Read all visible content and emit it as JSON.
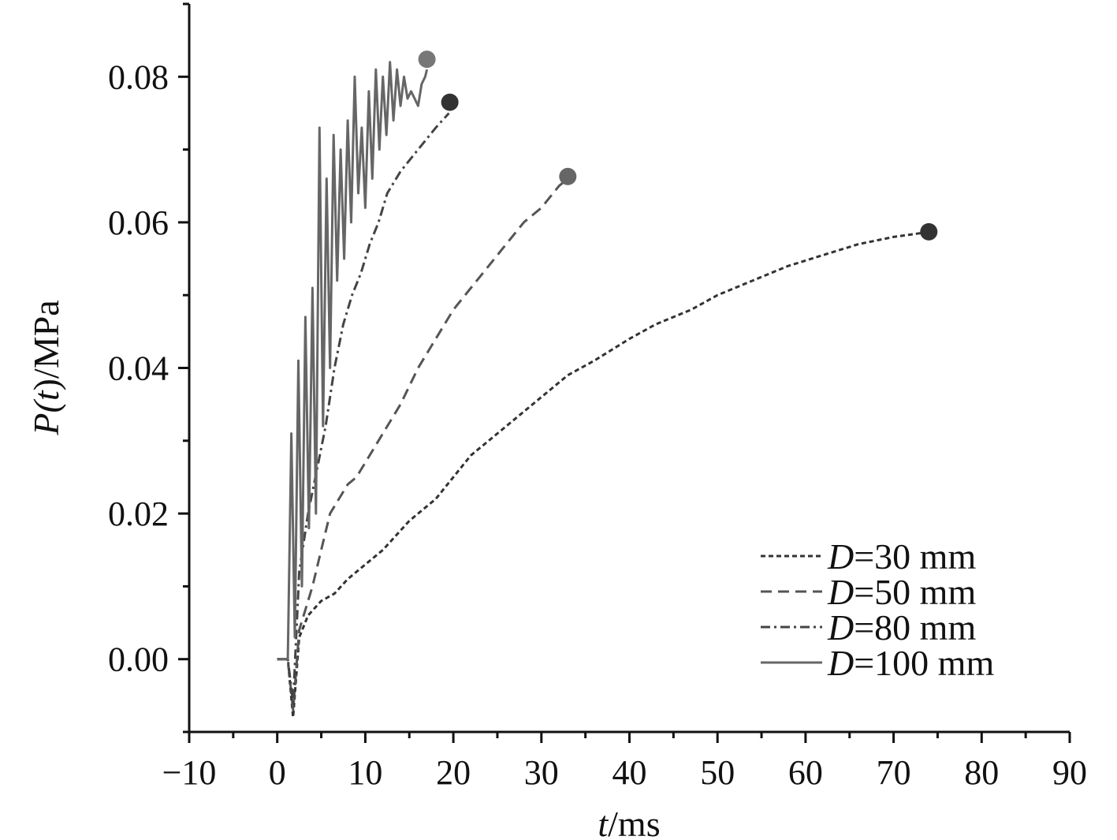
{
  "chart_data": {
    "type": "line",
    "xlabel": {
      "italic": "t",
      "rest": "/ms"
    },
    "ylabel": {
      "italic_prefix": "P(",
      "italic": "t",
      "rest": ")/MPa"
    },
    "xlim": [
      -10,
      90
    ],
    "ylim": [
      -0.01,
      0.09
    ],
    "x_ticks": [
      -10,
      0,
      10,
      20,
      30,
      40,
      50,
      60,
      70,
      80,
      90
    ],
    "x_tick_labels": [
      "−10",
      "0",
      "10",
      "20",
      "30",
      "40",
      "50",
      "60",
      "70",
      "80",
      "90"
    ],
    "y_ticks": [
      0.0,
      0.02,
      0.04,
      0.06,
      0.08
    ],
    "y_tick_labels": [
      "0.00",
      "0.02",
      "0.04",
      "0.06",
      "0.08"
    ],
    "grid": false,
    "legend_position": "bottom-right",
    "series": [
      {
        "name": "D=30 mm",
        "name_italic": "D",
        "name_rest": "=30 mm",
        "dash": "dotted",
        "color": "#333333",
        "x": [
          0,
          1.2,
          1.8,
          2.5,
          3.5,
          5,
          6.5,
          8,
          10,
          12,
          15,
          18,
          20,
          22,
          25,
          28,
          30,
          33,
          36,
          40,
          43,
          47,
          50,
          54,
          58,
          62,
          66,
          70,
          73,
          74
        ],
        "y": [
          0,
          0,
          -0.008,
          0.003,
          0.006,
          0.008,
          0.009,
          0.011,
          0.013,
          0.015,
          0.019,
          0.022,
          0.025,
          0.028,
          0.031,
          0.034,
          0.036,
          0.039,
          0.041,
          0.044,
          0.046,
          0.048,
          0.05,
          0.052,
          0.054,
          0.0555,
          0.057,
          0.058,
          0.0585,
          0.0585
        ],
        "end_marker": {
          "x": 74,
          "y": 0.0587,
          "color": "#333333"
        }
      },
      {
        "name": "D=50 mm",
        "name_italic": "D",
        "name_rest": "=50 mm",
        "dash": "dashed",
        "color": "#555555",
        "x": [
          0,
          1.2,
          1.8,
          2.5,
          4,
          5,
          6,
          7,
          8,
          9,
          10,
          12,
          14,
          16,
          18,
          20,
          22,
          24,
          26,
          28,
          30,
          32,
          33
        ],
        "y": [
          0,
          0,
          -0.007,
          0.004,
          0.01,
          0.015,
          0.02,
          0.022,
          0.024,
          0.025,
          0.027,
          0.031,
          0.035,
          0.04,
          0.044,
          0.048,
          0.051,
          0.054,
          0.057,
          0.06,
          0.062,
          0.065,
          0.066
        ],
        "end_marker": {
          "x": 33,
          "y": 0.0663,
          "color": "#666666"
        }
      },
      {
        "name": "D=80 mm",
        "name_italic": "D",
        "name_rest": "=80 mm",
        "dash": "dashdot",
        "color": "#444444",
        "x": [
          0,
          1.2,
          1.8,
          2.5,
          3.5,
          4.5,
          5.5,
          6.5,
          7.5,
          8.5,
          9.5,
          10.5,
          11.5,
          12.5,
          14,
          16,
          18,
          19.5
        ],
        "y": [
          0,
          0,
          -0.006,
          0.012,
          0.02,
          0.026,
          0.032,
          0.04,
          0.046,
          0.05,
          0.053,
          0.057,
          0.06,
          0.064,
          0.067,
          0.07,
          0.073,
          0.075
        ],
        "end_marker": {
          "x": 19.6,
          "y": 0.0765,
          "color": "#333333"
        }
      },
      {
        "name": "D=100 mm",
        "name_italic": "D",
        "name_rest": "=100 mm",
        "dash": "solid",
        "color": "#666666",
        "x": [
          0,
          1.2,
          1.6,
          2.0,
          2.4,
          2.8,
          3.2,
          3.6,
          4.0,
          4.4,
          4.8,
          5.2,
          5.6,
          6.0,
          6.4,
          6.8,
          7.2,
          7.6,
          8.0,
          8.4,
          8.8,
          9.2,
          9.6,
          10.0,
          10.4,
          10.8,
          11.2,
          11.6,
          12.0,
          12.4,
          12.8,
          13.2,
          13.6,
          14.0,
          14.4,
          14.8,
          15.2,
          15.6,
          16.0,
          16.4,
          16.8,
          17.0
        ],
        "y": [
          0,
          0,
          0.031,
          0.003,
          0.041,
          0.01,
          0.047,
          0.018,
          0.051,
          0.02,
          0.073,
          0.032,
          0.066,
          0.04,
          0.072,
          0.052,
          0.07,
          0.055,
          0.074,
          0.06,
          0.08,
          0.064,
          0.073,
          0.062,
          0.078,
          0.066,
          0.081,
          0.07,
          0.08,
          0.072,
          0.082,
          0.074,
          0.081,
          0.076,
          0.08,
          0.077,
          0.078,
          0.077,
          0.076,
          0.079,
          0.08,
          0.081
        ],
        "end_marker": {
          "x": 17.0,
          "y": 0.0824,
          "color": "#777777"
        }
      }
    ]
  }
}
